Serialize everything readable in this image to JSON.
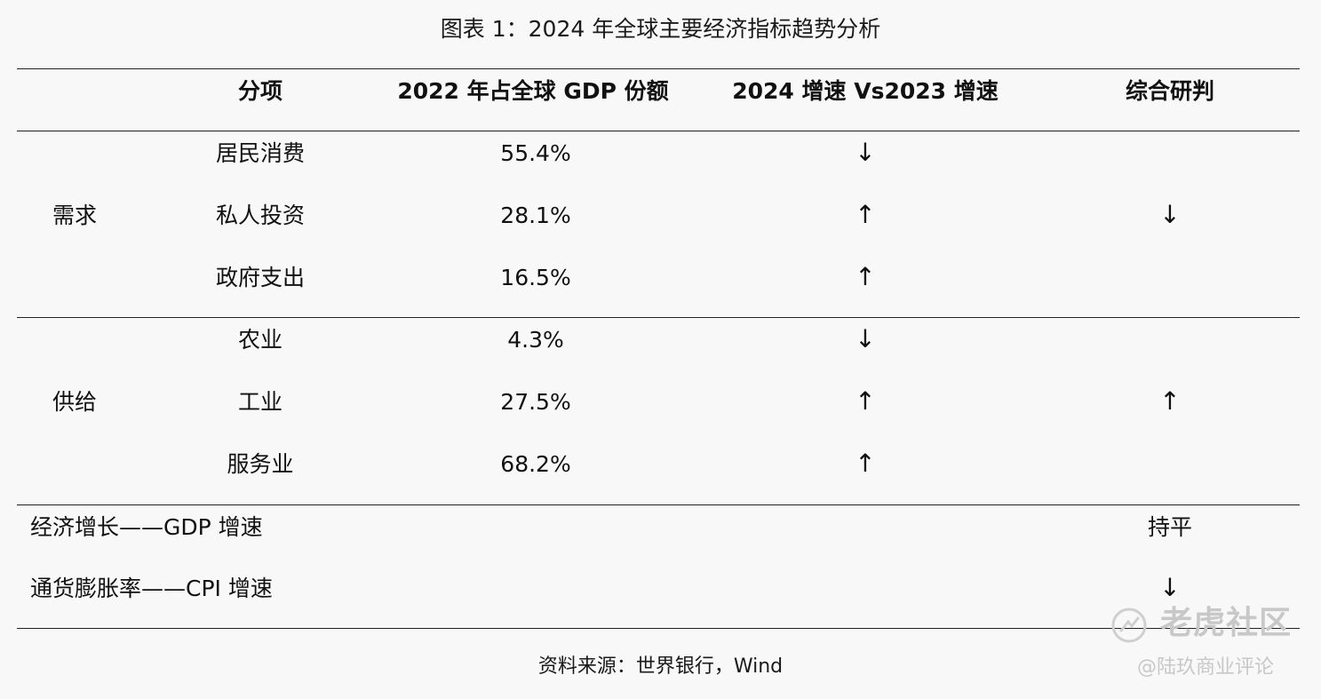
{
  "title": "图表 1：2024 年全球主要经济指标趋势分析",
  "headers": {
    "item": "分项",
    "gdp_share": "2022 年占全球 GDP 份额",
    "growth": "2024 增速 Vs2023 增速",
    "judgement": "综合研判"
  },
  "groups": [
    {
      "name": "需求",
      "judgement": "↓",
      "rows": [
        {
          "item": "居民消费",
          "share": "55.4%",
          "trend": "↓"
        },
        {
          "item": "私人投资",
          "share": "28.1%",
          "trend": "↑"
        },
        {
          "item": "政府支出",
          "share": "16.5%",
          "trend": "↑"
        }
      ]
    },
    {
      "name": "供给",
      "judgement": "↑",
      "rows": [
        {
          "item": "农业",
          "share": "4.3%",
          "trend": "↓"
        },
        {
          "item": "工业",
          "share": "27.5%",
          "trend": "↑"
        },
        {
          "item": "服务业",
          "share": "68.2%",
          "trend": "↑"
        }
      ]
    }
  ],
  "summary": [
    {
      "label": "经济增长——GDP 增速",
      "judgement": "持平"
    },
    {
      "label": "通货膨胀率——CPI 增速",
      "judgement": "↓"
    }
  ],
  "source": "资料来源：世界银行，Wind",
  "watermark": {
    "text": "老虎社区",
    "sub": "@陆玖商业评论"
  }
}
